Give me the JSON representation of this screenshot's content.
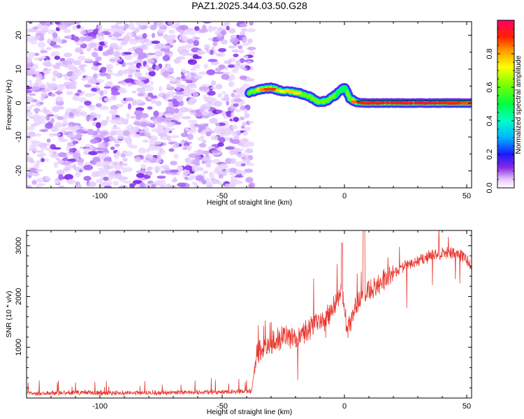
{
  "title": "PAZ1.2025.344.03.50.G28",
  "chart_data": [
    {
      "type": "heatmap",
      "name": "spectrogram",
      "xlabel": "Height of straight line (km)",
      "ylabel": "Frequency (Hz)",
      "xlim": [
        -130,
        52
      ],
      "ylim": [
        -25,
        24
      ],
      "xticks": [
        -100,
        -50,
        0,
        50
      ],
      "xtick_labels": [
        "-100",
        "-50",
        "0",
        "50"
      ],
      "yticks": [
        -20,
        -10,
        0,
        10,
        20
      ],
      "ytick_labels": [
        "-20",
        "-10",
        "0",
        "10",
        "20"
      ],
      "noise_region_x": [
        -130,
        -39
      ],
      "signal_ridge": {
        "x": [
          -39,
          -35,
          -30,
          -26,
          -22,
          -18,
          -14,
          -11,
          -8,
          -5,
          -3,
          -1,
          0,
          1,
          2,
          4,
          6,
          10,
          20,
          30,
          40,
          52
        ],
        "frequency": [
          3.0,
          4.0,
          4.5,
          3.6,
          3.4,
          2.8,
          1.8,
          0.4,
          0.5,
          1.6,
          2.8,
          4.0,
          4.5,
          3.5,
          1.5,
          0.5,
          0.1,
          0.0,
          0.0,
          0.0,
          0.0,
          0.0
        ],
        "amplitude": [
          0.55,
          0.75,
          0.9,
          0.7,
          0.75,
          0.7,
          0.6,
          0.6,
          0.7,
          0.6,
          0.5,
          0.55,
          0.5,
          0.55,
          0.55,
          0.85,
          0.9,
          0.9,
          0.9,
          0.95,
          0.9,
          0.85
        ]
      },
      "tone_frequency": 0.0,
      "tone_start_x": 5
    },
    {
      "type": "colorbar",
      "name": "amplitude-colorbar",
      "label": "Normalized spectral amplitude",
      "range": [
        0,
        1
      ],
      "ticks": [
        0.0,
        0.2,
        0.4,
        0.6,
        0.8
      ],
      "tick_labels": [
        "0.0",
        "0.2",
        "0.4",
        "0.6",
        "0.8"
      ]
    },
    {
      "type": "line",
      "name": "snr",
      "xlabel": "Height of straight line (km)",
      "ylabel": "SNR (10 * v/v)",
      "xlim": [
        -130,
        52
      ],
      "ylim": [
        0,
        3300
      ],
      "xticks": [
        -100,
        -50,
        0,
        50
      ],
      "xtick_labels": [
        "-100",
        "-50",
        "0",
        "50"
      ],
      "yticks": [
        1000,
        2000,
        3000
      ],
      "ytick_labels": [
        "1000",
        "2000",
        "3000"
      ],
      "color": "#e8382f",
      "trend": {
        "x": [
          -130,
          -110,
          -90,
          -70,
          -50,
          -38,
          -36,
          -32,
          -28,
          -24,
          -20,
          -16,
          -12,
          -8,
          -4,
          -1,
          0,
          1,
          2,
          4,
          8,
          12,
          16,
          20,
          25,
          30,
          35,
          40,
          45,
          50,
          52
        ],
        "y": [
          90,
          110,
          100,
          110,
          120,
          130,
          900,
          1050,
          1150,
          1200,
          1150,
          1300,
          1450,
          1550,
          1850,
          2100,
          1850,
          1250,
          1400,
          1750,
          2050,
          2150,
          2300,
          2450,
          2600,
          2700,
          2800,
          2850,
          2850,
          2750,
          2550
        ]
      }
    }
  ]
}
